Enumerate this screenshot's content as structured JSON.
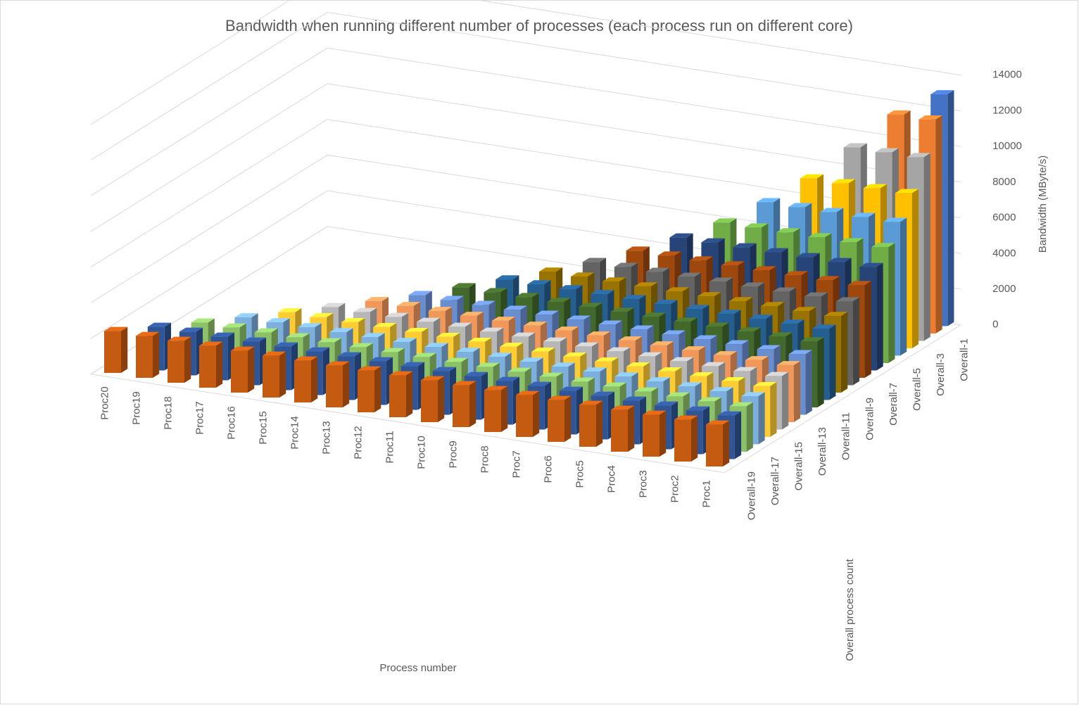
{
  "chart_data": {
    "type": "bar3d",
    "title": "Bandwidth when running different number of processes (each process run on different core)",
    "x_label": "Process number",
    "y_label": "Bandwidth (MByte/s)",
    "depth_label": "Overall process count",
    "categories": [
      "Proc1",
      "Proc2",
      "Proc3",
      "Proc4",
      "Proc5",
      "Proc6",
      "Proc7",
      "Proc8",
      "Proc9",
      "Proc10",
      "Proc11",
      "Proc12",
      "Proc13",
      "Proc14",
      "Proc15",
      "Proc16",
      "Proc17",
      "Proc18",
      "Proc19",
      "Proc20"
    ],
    "ylim": [
      0,
      14000
    ],
    "yticks": [
      0,
      2000,
      4000,
      6000,
      8000,
      10000,
      12000,
      14000
    ],
    "grid": true,
    "series": [
      {
        "name": "Overall-1",
        "color": "#4472c4",
        "values": [
          13000,
          null,
          null,
          null,
          null,
          null,
          null,
          null,
          null,
          null,
          null,
          null,
          null,
          null,
          null,
          null,
          null,
          null,
          null,
          null
        ]
      },
      {
        "name": null,
        "color": "#ed7d31",
        "values": [
          12000,
          12000,
          null,
          null,
          null,
          null,
          null,
          null,
          null,
          null,
          null,
          null,
          null,
          null,
          null,
          null,
          null,
          null,
          null,
          null
        ]
      },
      {
        "name": "Overall-3",
        "color": "#a5a5a5",
        "values": [
          10300,
          10300,
          10300,
          null,
          null,
          null,
          null,
          null,
          null,
          null,
          null,
          null,
          null,
          null,
          null,
          null,
          null,
          null,
          null,
          null
        ]
      },
      {
        "name": null,
        "color": "#ffc000",
        "values": [
          8700,
          8700,
          8700,
          8700,
          null,
          null,
          null,
          null,
          null,
          null,
          null,
          null,
          null,
          null,
          null,
          null,
          null,
          null,
          null,
          null
        ]
      },
      {
        "name": "Overall-5",
        "color": "#5b9bd5",
        "values": [
          7500,
          7500,
          7500,
          7500,
          7500,
          null,
          null,
          null,
          null,
          null,
          null,
          null,
          null,
          null,
          null,
          null,
          null,
          null,
          null,
          null
        ]
      },
      {
        "name": null,
        "color": "#70ad47",
        "values": [
          6500,
          6500,
          6500,
          6500,
          6500,
          6500,
          null,
          null,
          null,
          null,
          null,
          null,
          null,
          null,
          null,
          null,
          null,
          null,
          null,
          null
        ]
      },
      {
        "name": "Overall-7",
        "color": "#264478",
        "values": [
          5800,
          5800,
          5800,
          5800,
          5800,
          5800,
          5800,
          null,
          null,
          null,
          null,
          null,
          null,
          null,
          null,
          null,
          null,
          null,
          null,
          null
        ]
      },
      {
        "name": null,
        "color": "#9e480e",
        "values": [
          5200,
          5200,
          5200,
          5200,
          5200,
          5200,
          5200,
          5200,
          null,
          null,
          null,
          null,
          null,
          null,
          null,
          null,
          null,
          null,
          null,
          null
        ]
      },
      {
        "name": "Overall-9",
        "color": "#636363",
        "values": [
          4700,
          4700,
          4700,
          4700,
          4700,
          4700,
          4700,
          4700,
          4700,
          null,
          null,
          null,
          null,
          null,
          null,
          null,
          null,
          null,
          null,
          null
        ]
      },
      {
        "name": null,
        "color": "#997300",
        "values": [
          4300,
          4300,
          4300,
          4300,
          4300,
          4300,
          4300,
          4300,
          4300,
          4300,
          null,
          null,
          null,
          null,
          null,
          null,
          null,
          null,
          null,
          null
        ]
      },
      {
        "name": "Overall-11",
        "color": "#255e91",
        "values": [
          4000,
          4000,
          4000,
          4000,
          4000,
          4000,
          4000,
          4000,
          4000,
          4000,
          4000,
          null,
          null,
          null,
          null,
          null,
          null,
          null,
          null,
          null
        ]
      },
      {
        "name": null,
        "color": "#43682b",
        "values": [
          3700,
          3700,
          3700,
          3700,
          3700,
          3700,
          3700,
          3700,
          3700,
          3700,
          3700,
          3700,
          null,
          null,
          null,
          null,
          null,
          null,
          null,
          null
        ]
      },
      {
        "name": "Overall-13",
        "color": "#698ed0",
        "values": [
          3400,
          3400,
          3400,
          3400,
          3400,
          3400,
          3400,
          3400,
          3400,
          3400,
          3400,
          3400,
          3400,
          null,
          null,
          null,
          null,
          null,
          null,
          null
        ]
      },
      {
        "name": null,
        "color": "#f1975a",
        "values": [
          3200,
          3200,
          3200,
          3200,
          3200,
          3200,
          3200,
          3200,
          3200,
          3200,
          3200,
          3200,
          3200,
          3200,
          null,
          null,
          null,
          null,
          null,
          null
        ]
      },
      {
        "name": "Overall-15",
        "color": "#b7b7b7",
        "values": [
          3000,
          3000,
          3000,
          3000,
          3000,
          3000,
          3000,
          3000,
          3000,
          3000,
          3000,
          3000,
          3000,
          3000,
          3000,
          null,
          null,
          null,
          null,
          null
        ]
      },
      {
        "name": null,
        "color": "#ffcd33",
        "values": [
          2850,
          2850,
          2850,
          2850,
          2850,
          2850,
          2850,
          2850,
          2850,
          2850,
          2850,
          2850,
          2850,
          2850,
          2850,
          2850,
          null,
          null,
          null,
          null
        ]
      },
      {
        "name": "Overall-17",
        "color": "#7cafdd",
        "values": [
          2700,
          2700,
          2700,
          2700,
          2700,
          2700,
          2700,
          2700,
          2700,
          2700,
          2700,
          2700,
          2700,
          2700,
          2700,
          2700,
          2700,
          null,
          null,
          null
        ]
      },
      {
        "name": null,
        "color": "#8cc168",
        "values": [
          2550,
          2550,
          2550,
          2550,
          2550,
          2550,
          2550,
          2550,
          2550,
          2550,
          2550,
          2550,
          2550,
          2550,
          2550,
          2550,
          2550,
          2550,
          null,
          null
        ]
      },
      {
        "name": "Overall-19",
        "color": "#2f5597",
        "values": [
          2450,
          2450,
          2450,
          2450,
          2450,
          2450,
          2450,
          2450,
          2450,
          2450,
          2450,
          2450,
          2450,
          2450,
          2450,
          2450,
          2450,
          2450,
          2450,
          null
        ]
      },
      {
        "name": null,
        "color": "#c55a11",
        "values": [
          2350,
          2350,
          2350,
          2350,
          2350,
          2350,
          2350,
          2350,
          2350,
          2350,
          2350,
          2350,
          2350,
          2350,
          2350,
          2350,
          2350,
          2350,
          2350,
          2350
        ]
      }
    ]
  }
}
